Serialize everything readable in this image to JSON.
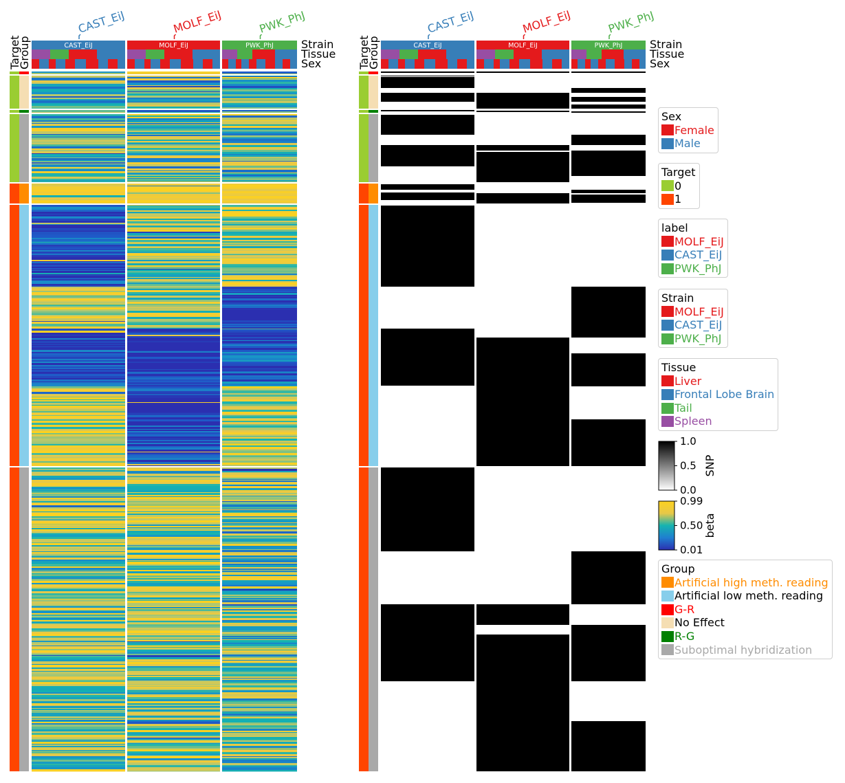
{
  "chart_data": {
    "type": "heatmap",
    "heatmaps": [
      {
        "name": "beta",
        "column_groups": [
          "CAST_EiJ",
          "MOLF_EiJ",
          "PWK_PhJ"
        ]
      },
      {
        "name": "SNP",
        "column_groups": [
          "CAST_EiJ",
          "MOLF_EiJ",
          "PWK_PhJ"
        ]
      }
    ],
    "column_annotation_labels": [
      "Strain",
      "Tissue",
      "Sex"
    ],
    "row_annotation_labels": [
      "Target",
      "Group"
    ],
    "row_groups": [
      {
        "target": "0",
        "group": "G-R"
      },
      {
        "target": "0",
        "group": "No Effect"
      },
      {
        "target": "0",
        "group": "R-G"
      },
      {
        "target": "0",
        "group": "Suboptimal hybridization"
      },
      {
        "target": "1",
        "group": "Artificial high meth. reading"
      },
      {
        "target": "1",
        "group": "Artificial low meth. reading"
      },
      {
        "target": "1",
        "group": "Suboptimal hybridization"
      }
    ],
    "colorbars": [
      {
        "name": "SNP",
        "ticks": [
          "1.0",
          "0.5",
          "0.0"
        ],
        "range": [
          0,
          1
        ],
        "colors": [
          "#000000",
          "#ffffff"
        ]
      },
      {
        "name": "beta",
        "ticks": [
          "0.99",
          "0.50",
          "0.01"
        ],
        "range": [
          0.01,
          0.99
        ],
        "colors": [
          "#fcd120",
          "#e8c848",
          "#15b3b0",
          "#1f7fd0",
          "#2b2fb0"
        ]
      }
    ]
  },
  "groups_top": [
    {
      "label": "CAST_EiJ",
      "color": "#377eb8"
    },
    {
      "label": "MOLF_EiJ",
      "color": "#e41a1c"
    },
    {
      "label": "PWK_PhJ",
      "color": "#4daf4a"
    }
  ],
  "legends": [
    {
      "title": "Sex",
      "items": [
        {
          "label": "Female",
          "color": "#e41a1c",
          "text_color": "#e41a1c"
        },
        {
          "label": "Male",
          "color": "#377eb8",
          "text_color": "#377eb8"
        }
      ]
    },
    {
      "title": "Target",
      "items": [
        {
          "label": "0",
          "color": "#9acd32",
          "text_color": "#000000"
        },
        {
          "label": "1",
          "color": "#ff4500",
          "text_color": "#000000"
        }
      ]
    },
    {
      "title": "label",
      "items": [
        {
          "label": "MOLF_EiJ",
          "color": "#e41a1c",
          "text_color": "#e41a1c"
        },
        {
          "label": "CAST_EiJ",
          "color": "#377eb8",
          "text_color": "#377eb8"
        },
        {
          "label": "PWK_PhJ",
          "color": "#4daf4a",
          "text_color": "#4daf4a"
        }
      ]
    },
    {
      "title": "Strain",
      "items": [
        {
          "label": "MOLF_EiJ",
          "color": "#e41a1c",
          "text_color": "#e41a1c"
        },
        {
          "label": "CAST_EiJ",
          "color": "#377eb8",
          "text_color": "#377eb8"
        },
        {
          "label": "PWK_PhJ",
          "color": "#4daf4a",
          "text_color": "#4daf4a"
        }
      ]
    },
    {
      "title": "Tissue",
      "items": [
        {
          "label": "Liver",
          "color": "#e41a1c",
          "text_color": "#e41a1c"
        },
        {
          "label": "Frontal Lobe Brain",
          "color": "#377eb8",
          "text_color": "#377eb8"
        },
        {
          "label": "Tail",
          "color": "#4daf4a",
          "text_color": "#4daf4a"
        },
        {
          "label": "Spleen",
          "color": "#984ea3",
          "text_color": "#984ea3"
        }
      ]
    },
    {
      "title": "Group",
      "items": [
        {
          "label": "Artificial high meth. reading",
          "color": "#ff8c00",
          "text_color": "#ff8c00"
        },
        {
          "label": "Artificial low meth. reading",
          "color": "#87ceeb",
          "text_color": "#000000"
        },
        {
          "label": "G-R",
          "color": "#ff0000",
          "text_color": "#ff0000"
        },
        {
          "label": "No Effect",
          "color": "#f5deb3",
          "text_color": "#000000"
        },
        {
          "label": "R-G",
          "color": "#008000",
          "text_color": "#008000"
        },
        {
          "label": "Suboptimal hybridization",
          "color": "#a9a9a9",
          "text_color": "#a9a9a9"
        }
      ]
    }
  ]
}
